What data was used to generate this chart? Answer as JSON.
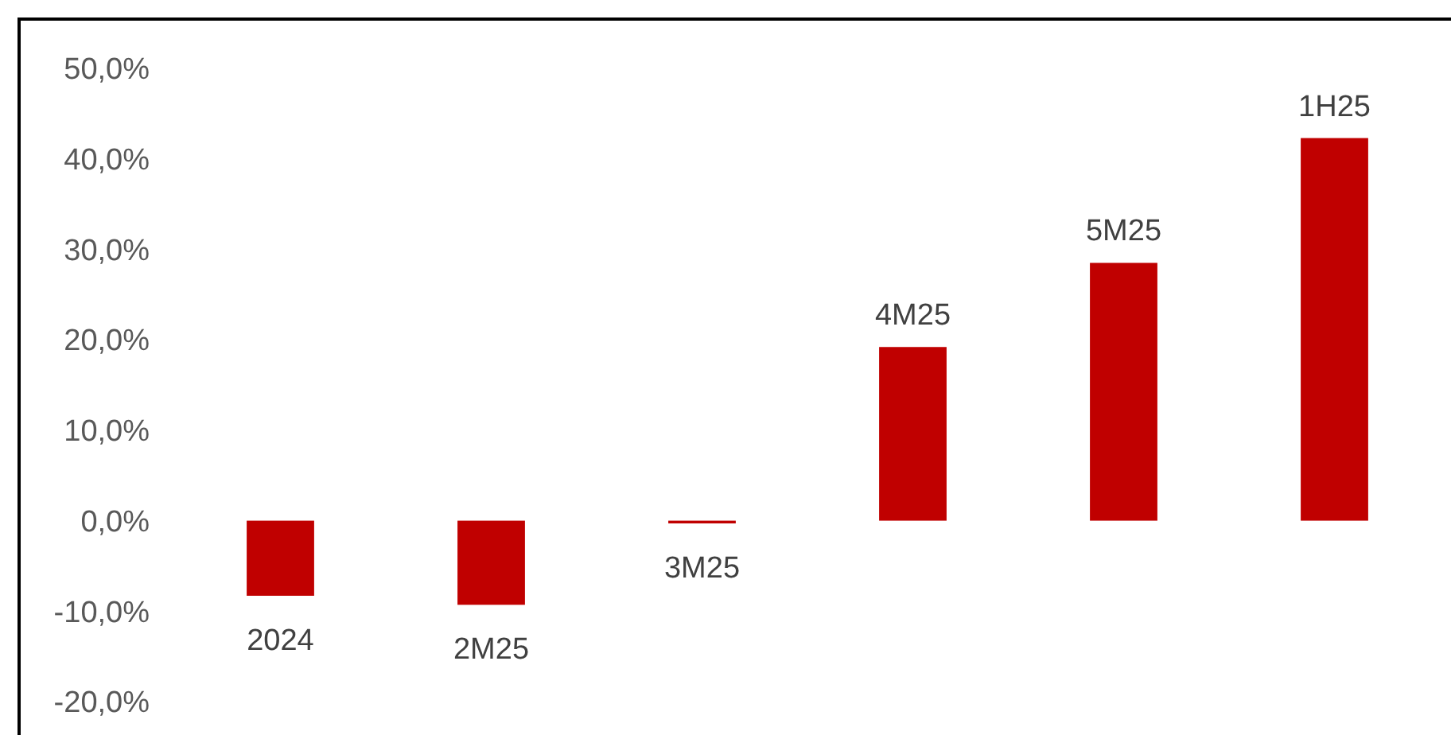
{
  "chart_data": {
    "type": "bar",
    "categories": [
      "2024",
      "2M25",
      "3M25",
      "4M25",
      "5M25",
      "1H25"
    ],
    "values": [
      -8.3,
      -9.3,
      -0.3,
      19.2,
      28.5,
      42.3
    ],
    "color": "#c00000",
    "ylim": [
      -20,
      50
    ],
    "yticks": [
      {
        "value": -20,
        "label": "-20,0%"
      },
      {
        "value": -10,
        "label": "-10,0%"
      },
      {
        "value": 0,
        "label": "0,0%"
      },
      {
        "value": 10,
        "label": "10,0%"
      },
      {
        "value": 20,
        "label": "20,0%"
      },
      {
        "value": 30,
        "label": "30,0%"
      },
      {
        "value": 40,
        "label": "40,0%"
      },
      {
        "value": 50,
        "label": "50,0%"
      }
    ],
    "grid": false
  }
}
